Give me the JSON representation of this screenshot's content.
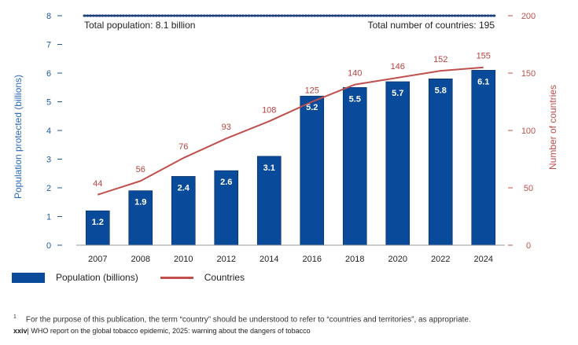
{
  "chart_data": {
    "type": "bar",
    "categories": [
      "2007",
      "2008",
      "2010",
      "2012",
      "2014",
      "2016",
      "2018",
      "2020",
      "2022",
      "2024"
    ],
    "series": [
      {
        "name": "Population (billions)",
        "type": "bar",
        "axis": "left",
        "values": [
          1.2,
          1.9,
          2.4,
          2.6,
          3.1,
          5.2,
          5.5,
          5.7,
          5.8,
          6.1
        ]
      },
      {
        "name": "Countries",
        "type": "line",
        "axis": "right",
        "values": [
          44,
          56,
          76,
          93,
          108,
          125,
          140,
          146,
          152,
          155
        ]
      }
    ],
    "ylabel": "Population protected (billions)",
    "ylabel_right": "Number of countries",
    "ylim": [
      0,
      8
    ],
    "ylim_right": [
      0,
      200
    ],
    "yticks": [
      "0",
      "1",
      "2",
      "3",
      "4",
      "5",
      "6",
      "7",
      "8"
    ],
    "yticks_right": [
      "0",
      "50",
      "100",
      "150",
      "200"
    ],
    "reference_line": {
      "value": 8,
      "style": "dotted"
    },
    "annotations": {
      "total_population": "Total population: 8.1 billion",
      "total_countries": "Total number of countries: 195"
    },
    "legend": {
      "placement": "bottom-left",
      "bar": "Population (billions)",
      "line": "Countries"
    },
    "colors": {
      "bar": "#0a4a9a",
      "line": "#c0504d",
      "left_axis": "#1e5a9e",
      "right_axis": "#c0504d"
    }
  },
  "footnote": {
    "marker": "1",
    "text": "For the purpose of this publication, the term “country” should be understood to refer to “countries and territories”, as appropriate."
  },
  "footer": {
    "page": "xxiv",
    "title": "| WHO report on the global tobacco epidemic, 2025: warning about the dangers of tobacco"
  }
}
